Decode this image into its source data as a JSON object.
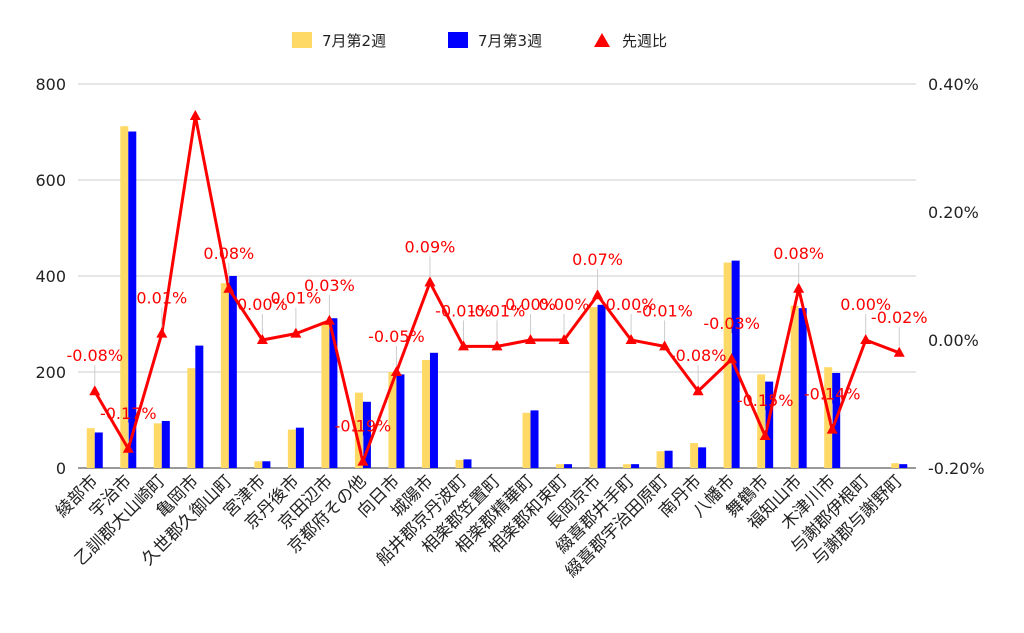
{
  "chart_data": {
    "type": "bar",
    "categories": [
      "綾部市",
      "宇治市",
      "乙訓郡大山崎町",
      "亀岡市",
      "久世郡久御山町",
      "宮津市",
      "京丹後市",
      "京田辺市",
      "京都府その他",
      "向日市",
      "城陽市",
      "船井郡京丹波町",
      "相楽郡笠置町",
      "相楽郡精華町",
      "相楽郡和束町",
      "長岡京市",
      "綴喜郡井手町",
      "綴喜郡宇治田原町",
      "南丹市",
      "八幡市",
      "舞鶴市",
      "福知山市",
      "木津川市",
      "与謝郡伊根町",
      "与謝郡与謝野町"
    ],
    "series": [
      {
        "name": "7月第2週",
        "axis": "left",
        "color": "#ffd966",
        "values": [
          83,
          712,
          93,
          208,
          385,
          14,
          80,
          305,
          157,
          200,
          225,
          17,
          0,
          115,
          8,
          335,
          8,
          35,
          52,
          428,
          195,
          338,
          210,
          0,
          10
        ]
      },
      {
        "name": "7月第3週",
        "axis": "left",
        "color": "#0000ff",
        "values": [
          74,
          701,
          98,
          255,
          400,
          14,
          84,
          312,
          138,
          195,
          240,
          18,
          0,
          120,
          8,
          340,
          8,
          36,
          43,
          432,
          180,
          333,
          198,
          0,
          8
        ]
      },
      {
        "name": "先週比",
        "type": "line",
        "axis": "right",
        "color": "#ff0000",
        "marker": "triangle",
        "values": [
          -0.0008,
          -0.0017,
          0.0001,
          0.0035,
          0.0008,
          0.0,
          0.0001,
          0.0003,
          -0.0019,
          -0.0005,
          0.0009,
          -0.0001,
          -0.0001,
          0.0,
          0.0,
          0.0007,
          0.0,
          -0.0001,
          -0.0008,
          -0.0003,
          -0.0015,
          0.0008,
          -0.0014,
          0.0,
          -0.0002
        ]
      }
    ],
    "line_labels": [
      "-0.08%",
      "-0.17%",
      "0.01%",
      "",
      "0.08%",
      "0.00%",
      "0.01%",
      "0.03%",
      "-0.19%",
      "-0.05%",
      "0.09%",
      "-0.01%",
      "-0.01%",
      "0.00%",
      "0.00%",
      "0.07%",
      "0.00%",
      "-0.01%",
      "-0.08%",
      "-0.03%",
      "-0.15%",
      "0.08%",
      "-0.14%",
      "0.00%",
      "-0.02%"
    ],
    "y_left": {
      "min": 0,
      "max": 800,
      "ticks": [
        "0",
        "200",
        "400",
        "600",
        "800"
      ]
    },
    "y_right": {
      "min": -0.002,
      "max": 0.004,
      "ticks": [
        "-0.20%",
        "0.00%",
        "0.20%",
        "0.40%"
      ]
    },
    "legend": {
      "position": "top",
      "items": [
        "7月第2週",
        "7月第3週",
        "先週比"
      ]
    },
    "grid": true
  }
}
